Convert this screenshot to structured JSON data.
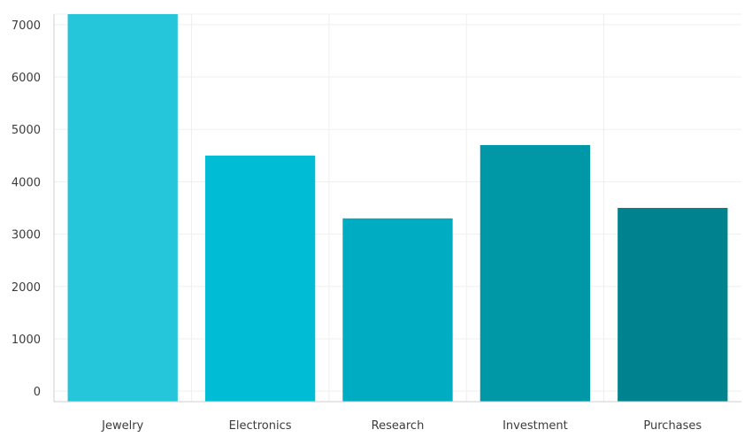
{
  "chart_data": {
    "type": "bar",
    "title": "",
    "xlabel": "",
    "ylabel": "",
    "categories": [
      "Jewelry",
      "Electronics",
      "Research",
      "Investment",
      "Purchases"
    ],
    "values": [
      7200,
      4500,
      3300,
      4700,
      3500
    ],
    "colors": [
      "#26c6da",
      "#00bcd4",
      "#00acc1",
      "#0097a7",
      "#00838f"
    ],
    "ylim": [
      -200,
      7200
    ],
    "yticks": [
      0,
      1000,
      2000,
      3000,
      4000,
      5000,
      6000,
      7000
    ],
    "grid": true
  }
}
